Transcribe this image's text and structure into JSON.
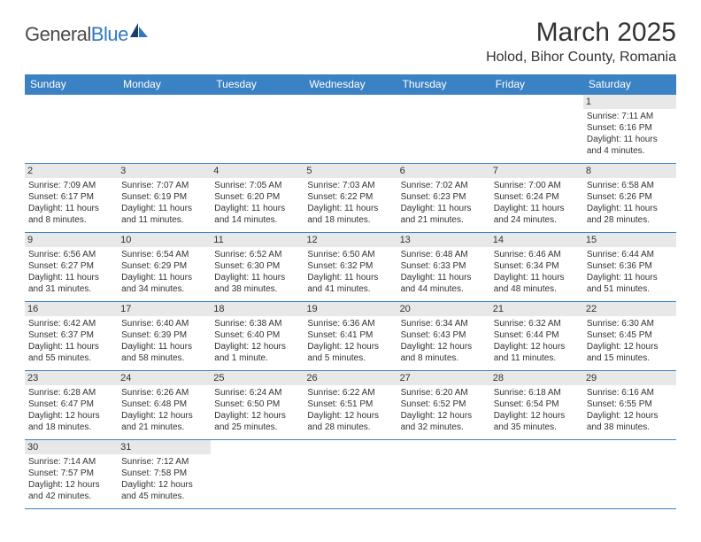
{
  "logo": {
    "part1": "General",
    "part2": "Blue"
  },
  "title": "March 2025",
  "location": "Holod, Bihor County, Romania",
  "columns": [
    "Sunday",
    "Monday",
    "Tuesday",
    "Wednesday",
    "Thursday",
    "Friday",
    "Saturday"
  ],
  "colors": {
    "header_bg": "#3b82c4",
    "header_text": "#ffffff",
    "cell_border": "#3b82c4",
    "daynum_bg": "#e8e8e8",
    "logo_blue": "#2f79c2",
    "text": "#333333"
  },
  "weeks": [
    [
      null,
      null,
      null,
      null,
      null,
      null,
      {
        "n": "1",
        "sr": "7:11 AM",
        "ss": "6:16 PM",
        "dl": "11 hours and 4 minutes."
      }
    ],
    [
      {
        "n": "2",
        "sr": "7:09 AM",
        "ss": "6:17 PM",
        "dl": "11 hours and 8 minutes."
      },
      {
        "n": "3",
        "sr": "7:07 AM",
        "ss": "6:19 PM",
        "dl": "11 hours and 11 minutes."
      },
      {
        "n": "4",
        "sr": "7:05 AM",
        "ss": "6:20 PM",
        "dl": "11 hours and 14 minutes."
      },
      {
        "n": "5",
        "sr": "7:03 AM",
        "ss": "6:22 PM",
        "dl": "11 hours and 18 minutes."
      },
      {
        "n": "6",
        "sr": "7:02 AM",
        "ss": "6:23 PM",
        "dl": "11 hours and 21 minutes."
      },
      {
        "n": "7",
        "sr": "7:00 AM",
        "ss": "6:24 PM",
        "dl": "11 hours and 24 minutes."
      },
      {
        "n": "8",
        "sr": "6:58 AM",
        "ss": "6:26 PM",
        "dl": "11 hours and 28 minutes."
      }
    ],
    [
      {
        "n": "9",
        "sr": "6:56 AM",
        "ss": "6:27 PM",
        "dl": "11 hours and 31 minutes."
      },
      {
        "n": "10",
        "sr": "6:54 AM",
        "ss": "6:29 PM",
        "dl": "11 hours and 34 minutes."
      },
      {
        "n": "11",
        "sr": "6:52 AM",
        "ss": "6:30 PM",
        "dl": "11 hours and 38 minutes."
      },
      {
        "n": "12",
        "sr": "6:50 AM",
        "ss": "6:32 PM",
        "dl": "11 hours and 41 minutes."
      },
      {
        "n": "13",
        "sr": "6:48 AM",
        "ss": "6:33 PM",
        "dl": "11 hours and 44 minutes."
      },
      {
        "n": "14",
        "sr": "6:46 AM",
        "ss": "6:34 PM",
        "dl": "11 hours and 48 minutes."
      },
      {
        "n": "15",
        "sr": "6:44 AM",
        "ss": "6:36 PM",
        "dl": "11 hours and 51 minutes."
      }
    ],
    [
      {
        "n": "16",
        "sr": "6:42 AM",
        "ss": "6:37 PM",
        "dl": "11 hours and 55 minutes."
      },
      {
        "n": "17",
        "sr": "6:40 AM",
        "ss": "6:39 PM",
        "dl": "11 hours and 58 minutes."
      },
      {
        "n": "18",
        "sr": "6:38 AM",
        "ss": "6:40 PM",
        "dl": "12 hours and 1 minute."
      },
      {
        "n": "19",
        "sr": "6:36 AM",
        "ss": "6:41 PM",
        "dl": "12 hours and 5 minutes."
      },
      {
        "n": "20",
        "sr": "6:34 AM",
        "ss": "6:43 PM",
        "dl": "12 hours and 8 minutes."
      },
      {
        "n": "21",
        "sr": "6:32 AM",
        "ss": "6:44 PM",
        "dl": "12 hours and 11 minutes."
      },
      {
        "n": "22",
        "sr": "6:30 AM",
        "ss": "6:45 PM",
        "dl": "12 hours and 15 minutes."
      }
    ],
    [
      {
        "n": "23",
        "sr": "6:28 AM",
        "ss": "6:47 PM",
        "dl": "12 hours and 18 minutes."
      },
      {
        "n": "24",
        "sr": "6:26 AM",
        "ss": "6:48 PM",
        "dl": "12 hours and 21 minutes."
      },
      {
        "n": "25",
        "sr": "6:24 AM",
        "ss": "6:50 PM",
        "dl": "12 hours and 25 minutes."
      },
      {
        "n": "26",
        "sr": "6:22 AM",
        "ss": "6:51 PM",
        "dl": "12 hours and 28 minutes."
      },
      {
        "n": "27",
        "sr": "6:20 AM",
        "ss": "6:52 PM",
        "dl": "12 hours and 32 minutes."
      },
      {
        "n": "28",
        "sr": "6:18 AM",
        "ss": "6:54 PM",
        "dl": "12 hours and 35 minutes."
      },
      {
        "n": "29",
        "sr": "6:16 AM",
        "ss": "6:55 PM",
        "dl": "12 hours and 38 minutes."
      }
    ],
    [
      {
        "n": "30",
        "sr": "7:14 AM",
        "ss": "7:57 PM",
        "dl": "12 hours and 42 minutes."
      },
      {
        "n": "31",
        "sr": "7:12 AM",
        "ss": "7:58 PM",
        "dl": "12 hours and 45 minutes."
      },
      null,
      null,
      null,
      null,
      null
    ]
  ],
  "labels": {
    "sunrise": "Sunrise: ",
    "sunset": "Sunset: ",
    "daylight": "Daylight: "
  }
}
